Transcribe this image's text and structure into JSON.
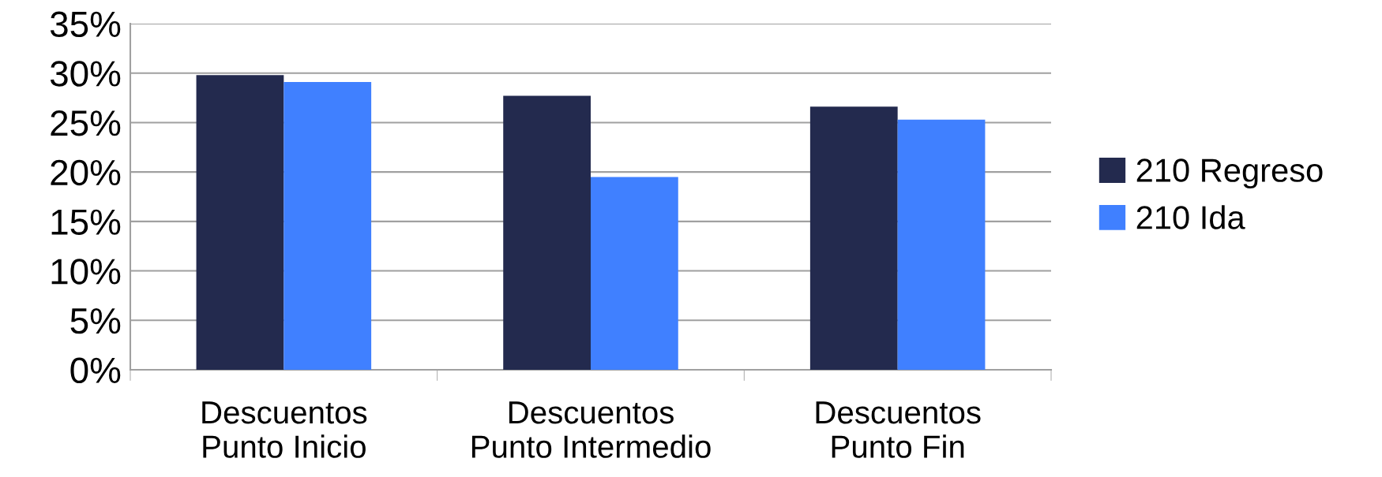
{
  "chart_data": {
    "type": "bar",
    "categories": [
      "Descuentos\nPunto Inicio",
      "Descuentos\nPunto Intermedio",
      "Descuentos\nPunto Fin"
    ],
    "series": [
      {
        "name": "210 Regreso",
        "color": "#232a4e",
        "values": [
          29.8,
          27.7,
          26.6
        ]
      },
      {
        "name": "210 Ida",
        "color": "#4080ff",
        "values": [
          29.1,
          19.5,
          25.3
        ]
      }
    ],
    "ylim": [
      0,
      35
    ],
    "yticks": [
      {
        "value": 0,
        "label": "0%"
      },
      {
        "value": 5,
        "label": "5%"
      },
      {
        "value": 10,
        "label": "10%"
      },
      {
        "value": 15,
        "label": "15%"
      },
      {
        "value": 20,
        "label": "20%"
      },
      {
        "value": 25,
        "label": "25%"
      },
      {
        "value": 30,
        "label": "30%"
      },
      {
        "value": 35,
        "label": "35%"
      }
    ],
    "grid": "y",
    "legend": "right"
  }
}
